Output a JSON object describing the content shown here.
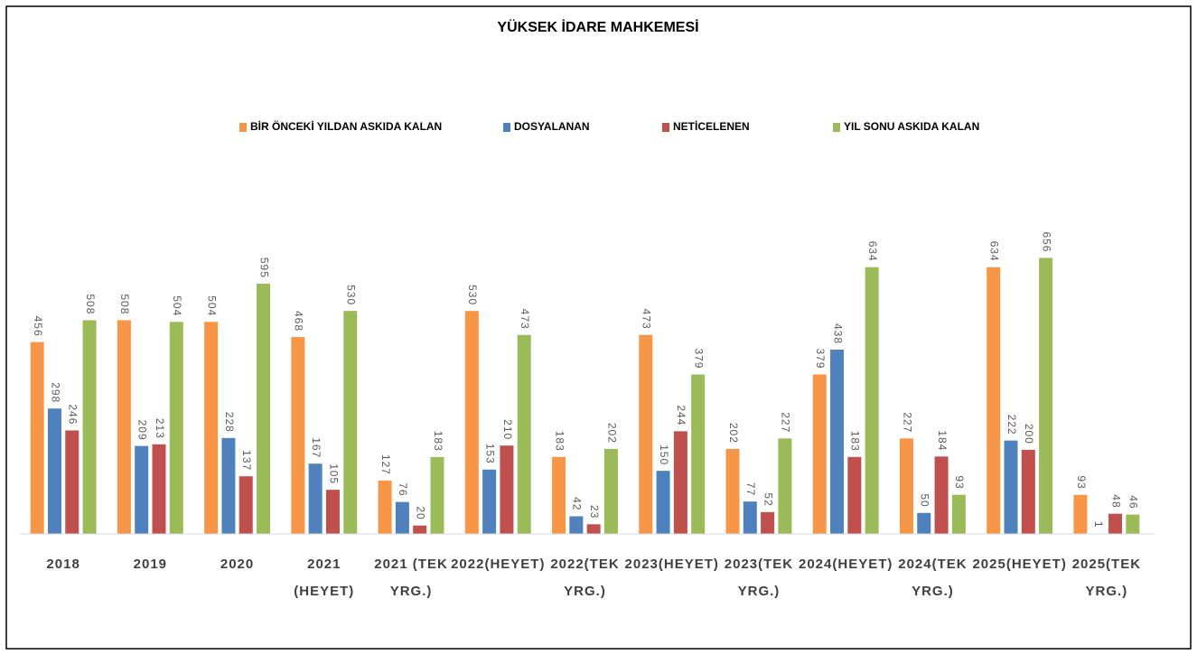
{
  "chart_data": {
    "type": "bar",
    "title": "YÜKSEK İDARE MAHKEMESİ",
    "categories": [
      "2018",
      "2019",
      "2020",
      "2021\n(HEYET)",
      "2021 (TEK\nYRG.)",
      "2022(HEYET)",
      "2022(TEK\nYRG.)",
      "2023(HEYET)",
      "2023(TEK\nYRG.)",
      "2024(HEYET)",
      "2024(TEK\nYRG.)",
      "2025(HEYET)",
      "2025(TEK\nYRG.)"
    ],
    "series": [
      {
        "name": "BİR ÖNCEKİ YILDAN ASKIDA KALAN",
        "color": "#f79646",
        "values": [
          456,
          508,
          504,
          468,
          127,
          530,
          183,
          473,
          202,
          379,
          227,
          634,
          93
        ]
      },
      {
        "name": "DOSYALANAN",
        "color": "#4f81bd",
        "values": [
          298,
          209,
          228,
          167,
          76,
          153,
          42,
          150,
          77,
          438,
          50,
          222,
          1
        ]
      },
      {
        "name": "NETİCELENEN",
        "color": "#c0504d",
        "values": [
          246,
          213,
          137,
          105,
          20,
          210,
          23,
          244,
          52,
          183,
          184,
          200,
          48
        ]
      },
      {
        "name": "YIL SONU ASKIDA KALAN",
        "color": "#9bbb59",
        "values": [
          508,
          504,
          595,
          530,
          183,
          473,
          202,
          379,
          227,
          634,
          93,
          656,
          46
        ]
      }
    ],
    "ylim": [
      0,
      700
    ],
    "legend": "top"
  }
}
